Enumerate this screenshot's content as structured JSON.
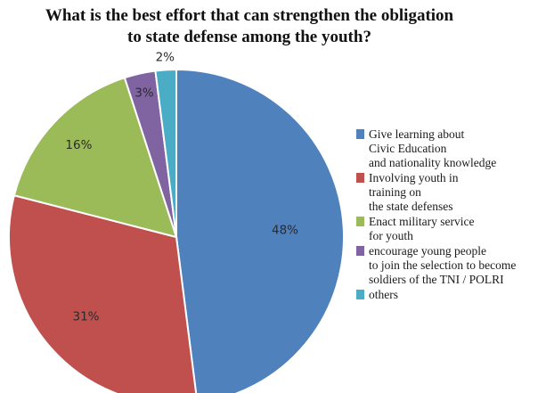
{
  "chart_data": {
    "type": "pie",
    "title_lines": [
      "What is the best effort that can strengthen the obligation",
      "to state defense among the youth?"
    ],
    "slices": [
      {
        "label_lines": [
          "Give learning about",
          "Civic Education",
          "and nationality knowledge"
        ],
        "value": 48,
        "display": "48%",
        "color": "#4F81BD"
      },
      {
        "label_lines": [
          "Involving youth in",
          "training on",
          "the state defenses"
        ],
        "value": 31,
        "display": "31%",
        "color": "#C0504D"
      },
      {
        "label_lines": [
          "Enact military service",
          "for youth"
        ],
        "value": 16,
        "display": "16%",
        "color": "#9BBB59"
      },
      {
        "label_lines": [
          "encourage young people",
          "to join the selection to become",
          "soldiers of the TNI / POLRI"
        ],
        "value": 3,
        "display": "3%",
        "color": "#8064A2"
      },
      {
        "label_lines": [
          "others"
        ],
        "value": 2,
        "display": "2%",
        "color": "#4BACC6"
      }
    ],
    "legend_position": "right",
    "start_angle": "12 o'clock, clockwise"
  }
}
